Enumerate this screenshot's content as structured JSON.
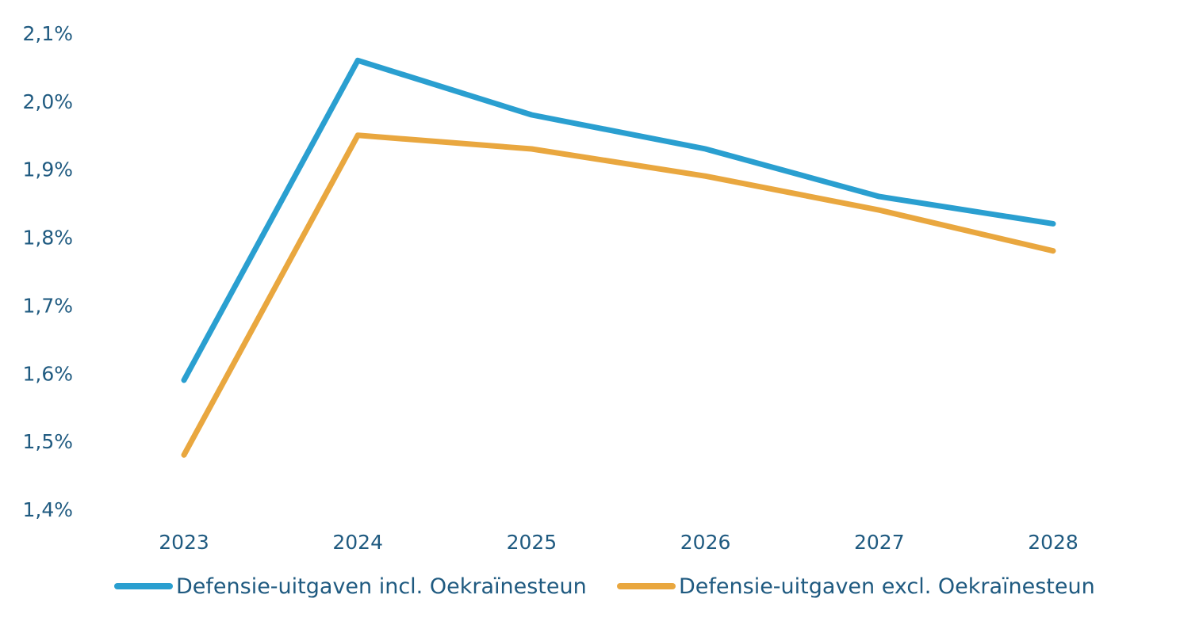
{
  "chart_data": {
    "type": "line",
    "title": "",
    "xlabel": "",
    "ylabel": "",
    "categories": [
      "2023",
      "2024",
      "2025",
      "2026",
      "2027",
      "2028"
    ],
    "ylim": [
      1.4,
      2.1
    ],
    "yticks": [
      2.1,
      2.0,
      1.9,
      1.8,
      1.7,
      1.6,
      1.5,
      1.4
    ],
    "ytick_labels": [
      "2,1%",
      "2,0%",
      "1,9%",
      "1,8%",
      "1,7%",
      "1,6%",
      "1,5%",
      "1,4%"
    ],
    "grid": false,
    "legend_position": "bottom",
    "series": [
      {
        "name": "Defensie-uitgaven incl. Oekraïnesteun",
        "color": "#2a9fd0",
        "values": [
          1.59,
          2.06,
          1.98,
          1.93,
          1.86,
          1.82
        ]
      },
      {
        "name": "Defensie-uitgaven excl. Oekraïnesteun",
        "color": "#e9a73f",
        "values": [
          1.48,
          1.95,
          1.93,
          1.89,
          1.84,
          1.78
        ]
      }
    ]
  }
}
